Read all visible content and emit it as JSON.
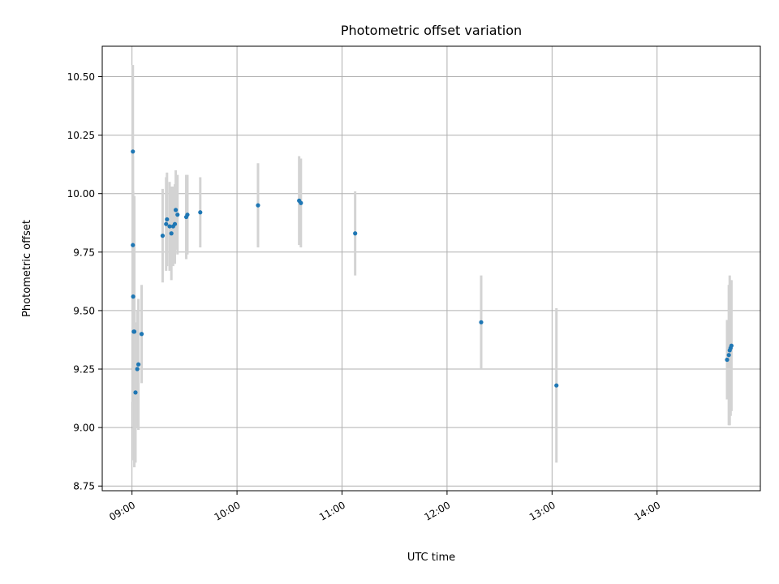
{
  "chart_data": {
    "type": "scatter",
    "title": "Photometric offset variation",
    "xlabel": "UTC time",
    "ylabel": "Photometric offset",
    "x_unit": "UTC time (HH:MM)",
    "xlim": [
      "08:43",
      "14:59"
    ],
    "ylim": [
      8.73,
      10.63
    ],
    "x_ticks": [
      "09:00",
      "10:00",
      "11:00",
      "12:00",
      "13:00",
      "14:00"
    ],
    "y_ticks": [
      "8.75",
      "9.00",
      "9.25",
      "9.50",
      "9.75",
      "10.00",
      "10.25",
      "10.50"
    ],
    "grid": true,
    "legend": false,
    "marker_color": "#1f77b4",
    "errorbar_color": "#d3d3d3",
    "points": [
      {
        "x": "09:00:30",
        "y": 10.18,
        "err": 0.37
      },
      {
        "x": "09:00:30",
        "y": 9.78,
        "err": 0.38
      },
      {
        "x": "09:00:40",
        "y": 9.56,
        "err": 0.45
      },
      {
        "x": "09:01:00",
        "y": 9.41,
        "err": 0.55
      },
      {
        "x": "09:01:20",
        "y": 9.41,
        "err": 0.58
      },
      {
        "x": "09:02:00",
        "y": 9.15,
        "err": 0.3
      },
      {
        "x": "09:03:00",
        "y": 9.25,
        "err": 0.25
      },
      {
        "x": "09:03:40",
        "y": 9.27,
        "err": 0.28
      },
      {
        "x": "09:05:30",
        "y": 9.4,
        "err": 0.21
      },
      {
        "x": "09:17:30",
        "y": 9.82,
        "err": 0.2
      },
      {
        "x": "09:19:30",
        "y": 9.87,
        "err": 0.2
      },
      {
        "x": "09:20:00",
        "y": 9.89,
        "err": 0.2
      },
      {
        "x": "09:21:30",
        "y": 9.86,
        "err": 0.19
      },
      {
        "x": "09:22:30",
        "y": 9.83,
        "err": 0.2
      },
      {
        "x": "09:23:30",
        "y": 9.86,
        "err": 0.17
      },
      {
        "x": "09:24:30",
        "y": 9.87,
        "err": 0.17
      },
      {
        "x": "09:25:00",
        "y": 9.93,
        "err": 0.17
      },
      {
        "x": "09:26:00",
        "y": 9.91,
        "err": 0.17
      },
      {
        "x": "09:31:00",
        "y": 9.9,
        "err": 0.18
      },
      {
        "x": "09:31:40",
        "y": 9.91,
        "err": 0.17
      },
      {
        "x": "09:39:00",
        "y": 9.92,
        "err": 0.15
      },
      {
        "x": "10:12:00",
        "y": 9.95,
        "err": 0.18
      },
      {
        "x": "10:35:30",
        "y": 9.97,
        "err": 0.19
      },
      {
        "x": "10:36:30",
        "y": 9.96,
        "err": 0.19
      },
      {
        "x": "11:07:30",
        "y": 9.83,
        "err": 0.18
      },
      {
        "x": "12:19:30",
        "y": 9.45,
        "err": 0.2
      },
      {
        "x": "13:02:30",
        "y": 9.18,
        "err": 0.33
      },
      {
        "x": "14:40:00",
        "y": 9.29,
        "err": 0.17
      },
      {
        "x": "14:41:00",
        "y": 9.31,
        "err": 0.3
      },
      {
        "x": "14:41:30",
        "y": 9.33,
        "err": 0.32
      },
      {
        "x": "14:42:00",
        "y": 9.34,
        "err": 0.29
      },
      {
        "x": "14:42:30",
        "y": 9.35,
        "err": 0.28
      }
    ]
  }
}
